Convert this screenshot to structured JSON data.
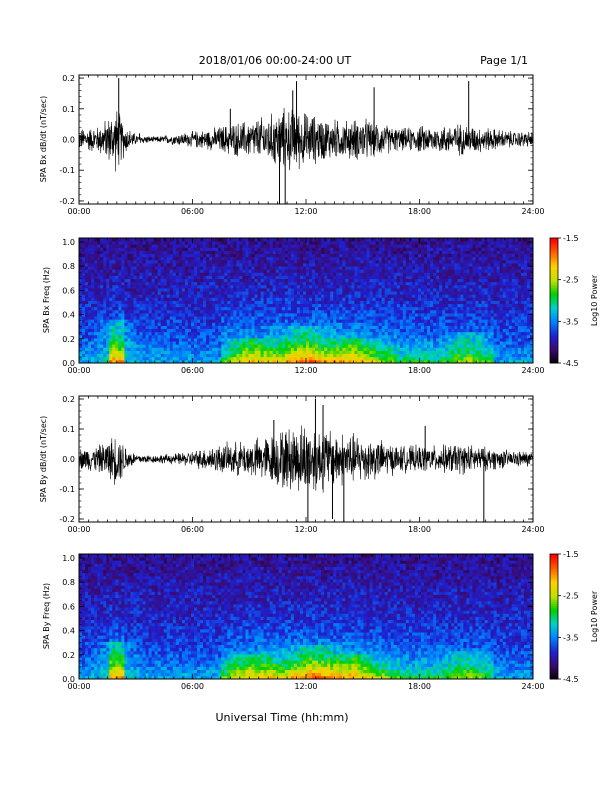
{
  "header": {
    "date_range": "2018/01/06  00:00-24:00 UT",
    "page": "Page 1/1"
  },
  "xaxis": {
    "label": "Universal Time (hh:mm)",
    "ticks": [
      "00:00",
      "06:00",
      "12:00",
      "18:00",
      "24:00"
    ],
    "range_hours": [
      0,
      24
    ]
  },
  "colorscale": {
    "ticks": [
      "-1.5",
      "-2.5",
      "-3.5",
      "-4.5"
    ],
    "range": [
      -4.5,
      -1.5
    ],
    "colors": [
      "#000000",
      "#3a0a6e",
      "#2020d0",
      "#0080ff",
      "#00d0d0",
      "#00d000",
      "#c0e000",
      "#ffd000",
      "#ff6000",
      "#ff0000"
    ]
  },
  "chart_data": [
    {
      "type": "line",
      "name": "Bx dB/dt",
      "ylabel": "SPA Bx dB/dt (nT/sec)",
      "yticks": [
        "0.2",
        "0.1",
        "0.0",
        "-0.1",
        "-0.2"
      ],
      "ylim": [
        -0.21,
        0.21
      ],
      "x_hours": [
        0,
        1,
        1.5,
        2,
        2.5,
        3,
        4,
        5,
        6,
        7,
        8,
        9,
        10,
        11,
        12,
        13,
        14,
        15,
        16,
        17,
        18,
        19,
        20,
        21,
        22,
        23,
        24
      ],
      "envelope": [
        0.04,
        0.05,
        0.08,
        0.12,
        0.05,
        0.02,
        0.01,
        0.02,
        0.03,
        0.04,
        0.06,
        0.07,
        0.09,
        0.12,
        0.1,
        0.08,
        0.07,
        0.08,
        0.06,
        0.04,
        0.05,
        0.05,
        0.06,
        0.05,
        0.04,
        0.03,
        0.03
      ],
      "spikes": [
        [
          2.1,
          0.2
        ],
        [
          10.6,
          -0.21
        ],
        [
          10.9,
          -0.21
        ],
        [
          11.5,
          0.19
        ],
        [
          15.6,
          0.17
        ],
        [
          20.6,
          0.19
        ],
        [
          3.2,
          0.02
        ],
        [
          8.0,
          0.1
        ],
        [
          11.3,
          0.16
        ]
      ]
    },
    {
      "type": "heatmap",
      "name": "Bx Freq",
      "ylabel": "SPA Bx Freq (Hz)",
      "yticks": [
        "1.0",
        "0.8",
        "0.6",
        "0.4",
        "0.2",
        "0.0"
      ],
      "ylim": [
        0,
        1
      ],
      "zlabel": "Log10 Power",
      "bands": [
        [
          2,
          0.35
        ],
        [
          9,
          0.2
        ],
        [
          12,
          0.3
        ],
        [
          14.5,
          0.2
        ],
        [
          20.5,
          0.25
        ]
      ]
    },
    {
      "type": "line",
      "name": "By dB/dt",
      "ylabel": "SPA By dB/dt (nT/sec)",
      "yticks": [
        "0.2",
        "0.1",
        "0.0",
        "-0.1",
        "-0.2"
      ],
      "ylim": [
        -0.21,
        0.21
      ],
      "x_hours": [
        0,
        1,
        1.5,
        2,
        2.5,
        3,
        4,
        5,
        6,
        7,
        8,
        9,
        10,
        11,
        12,
        13,
        14,
        15,
        16,
        17,
        18,
        19,
        20,
        21,
        22,
        23,
        24
      ],
      "envelope": [
        0.04,
        0.05,
        0.07,
        0.1,
        0.05,
        0.02,
        0.015,
        0.02,
        0.03,
        0.05,
        0.06,
        0.07,
        0.09,
        0.12,
        0.14,
        0.12,
        0.1,
        0.09,
        0.07,
        0.05,
        0.05,
        0.05,
        0.06,
        0.05,
        0.04,
        0.03,
        0.03
      ],
      "spikes": [
        [
          12.5,
          0.2
        ],
        [
          13.4,
          -0.2
        ],
        [
          12.1,
          -0.21
        ],
        [
          14.0,
          -0.21
        ],
        [
          21.4,
          -0.21
        ],
        [
          12.9,
          0.18
        ],
        [
          10.3,
          0.13
        ],
        [
          18.3,
          0.11
        ]
      ]
    },
    {
      "type": "heatmap",
      "name": "By Freq",
      "ylabel": "SPA By Freq (Hz)",
      "yticks": [
        "1.0",
        "0.8",
        "0.6",
        "0.4",
        "0.2",
        "0.0"
      ],
      "ylim": [
        0,
        1
      ],
      "zlabel": "Log10 Power",
      "bands": [
        [
          2,
          0.3
        ],
        [
          9,
          0.2
        ],
        [
          12.5,
          0.28
        ],
        [
          14.5,
          0.2
        ],
        [
          20.5,
          0.22
        ]
      ]
    }
  ]
}
